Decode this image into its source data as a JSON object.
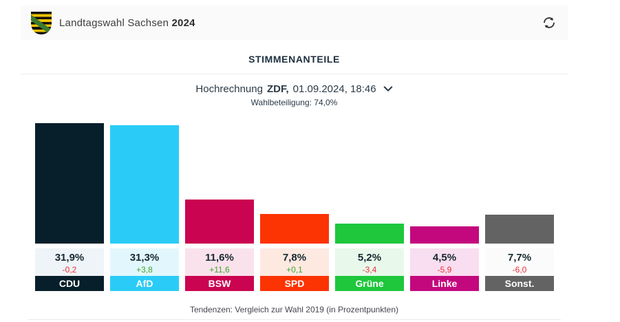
{
  "header": {
    "title": "Landtagswahl Sachsen",
    "year": "2024",
    "refresh_icon": "refresh-sync"
  },
  "section": {
    "title": "STIMMENANTEILE"
  },
  "subheader": {
    "prefix": "Hochrechnung",
    "source": "ZDF,",
    "datetime": "01.09.2024, 18:46",
    "chevron_icon": "chevron-down",
    "turnout": "Wahlbeteiligung: 74,0%"
  },
  "footer": {
    "note": "Tendenzen: Vergleich zur Wahl 2019 (in Prozentpunkten)"
  },
  "chart_data": {
    "type": "bar",
    "title": "Stimmenanteile",
    "subtitle": "Hochrechnung ZDF, 01.09.2024, 18:46",
    "categories": [
      "CDU",
      "AfD",
      "BSW",
      "SPD",
      "Grüne",
      "Linke",
      "Sonst."
    ],
    "values": [
      31.9,
      31.3,
      11.6,
      7.8,
      5.2,
      4.5,
      7.7
    ],
    "value_labels": [
      "31,9%",
      "31,3%",
      "11,6%",
      "7,8%",
      "5,2%",
      "4,5%",
      "7,7%"
    ],
    "changes": [
      "-0,2",
      "+3,8",
      "+11,6",
      "+0,1",
      "-3,4",
      "-5,9",
      "-6,0"
    ],
    "change_trends": [
      "negative",
      "positive",
      "positive",
      "positive",
      "negative",
      "negative",
      "negative"
    ],
    "bar_colors": [
      "#071f2a",
      "#2accf7",
      "#ca0450",
      "#fc3303",
      "#1ec73c",
      "#c3087e",
      "#636363"
    ],
    "tint_colors": [
      "#eef4f8",
      "#e2f7fd",
      "#fae2ec",
      "#fee9e1",
      "#e8f9eb",
      "#f9ddf0",
      "#fbfbfb"
    ],
    "positive_color": "#3fa52e",
    "negative_color": "#ee2e36",
    "unit": "%",
    "ylim": [
      0,
      32
    ],
    "grid": false,
    "legend": "none",
    "note": "Tendenzen: Vergleich zur Wahl 2019 (in Prozentpunkten)"
  }
}
